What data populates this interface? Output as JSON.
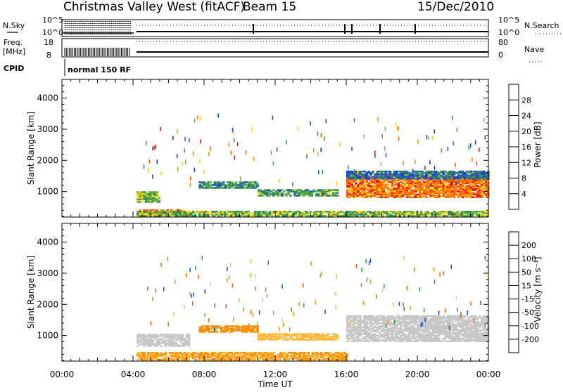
{
  "header": {
    "station": "Christmas Valley West (fitACF)",
    "beam": "Beam 15",
    "date": "15/Dec/2010"
  },
  "status_panels": {
    "nsky_label": "N.Sky",
    "nsky_scale": [
      "10^5",
      "10^0"
    ],
    "nsearch_label": "N.Search",
    "nsearch_scale": [
      "10^5",
      "10^0"
    ],
    "freq_label": "Freq.",
    "freq_unit": "[MHz]",
    "freq_scale": [
      "18",
      "8"
    ],
    "nave_label": "Nave",
    "nave_scale": [
      "80",
      "0"
    ],
    "cpid_label": "CPID",
    "cpid_value": "normal 150 RF"
  },
  "colors": {
    "power": [
      "#0033ff",
      "#1f4fd0",
      "#2f8a55",
      "#5fb247",
      "#ffd400",
      "#ff8c00",
      "#ff5a00",
      "#ff0000"
    ],
    "velocity": [
      "#ff0000",
      "#ff6000",
      "#ff9000",
      "#ffbb40",
      "#c8c8c8",
      "#6ccb2a",
      "#2f9f3a",
      "#1f4fbf",
      "#0033cc"
    ],
    "ground_scatter": "#c8c8c8"
  },
  "chart_data": [
    {
      "type": "heatmap",
      "title": "Power",
      "colorbar_label": "Power [dB]",
      "colorbar_ticks": [
        "4",
        "8",
        "12",
        "16",
        "20",
        "24",
        "28"
      ],
      "xlabel": "",
      "ylabel": "Slant Range [km]",
      "yticks": [
        "1000",
        "2000",
        "3000",
        "4000"
      ],
      "ylim": [
        180,
        4600
      ],
      "xlim_hours": [
        0,
        24
      ],
      "grid": false,
      "regions": [
        {
          "t": [
            4.2,
            5.5
          ],
          "r": [
            650,
            1000
          ],
          "value_db": 14
        },
        {
          "t": [
            4.2,
            7.2
          ],
          "r": [
            200,
            420
          ],
          "value_db": 24
        },
        {
          "t": [
            7.7,
            11.0
          ],
          "r": [
            1100,
            1300
          ],
          "value_db": 10
        },
        {
          "t": [
            11.0,
            15.5
          ],
          "r": [
            850,
            1050
          ],
          "value_db": 12
        },
        {
          "t": [
            16.0,
            24.0
          ],
          "r": [
            800,
            1500
          ],
          "value_db": 24
        },
        {
          "t": [
            16.0,
            24.0
          ],
          "r": [
            1400,
            1650
          ],
          "value_db": 8
        },
        {
          "t": [
            4.2,
            24.0
          ],
          "r": [
            200,
            350
          ],
          "value_db": 14
        }
      ]
    },
    {
      "type": "heatmap",
      "title": "Velocity",
      "colorbar_label": "Velocity [m s⁻¹]",
      "colorbar_ticks": [
        "-200",
        "-100",
        "-50",
        "-15",
        "15",
        "50",
        "100",
        "200"
      ],
      "xlabel": "Time UT",
      "ylabel": "Slant Range [km]",
      "xticks": [
        "00:00",
        "04:00",
        "08:00",
        "12:00",
        "16:00",
        "20:00",
        "00:00"
      ],
      "yticks": [
        "1000",
        "2000",
        "3000",
        "4000"
      ],
      "ylim": [
        180,
        4600
      ],
      "xlim_hours": [
        0,
        24
      ],
      "grid": false,
      "regions": [
        {
          "t": [
            4.2,
            7.2
          ],
          "r": [
            650,
            1050
          ],
          "value_ms": 0
        },
        {
          "t": [
            7.7,
            11.0
          ],
          "r": [
            1100,
            1300
          ],
          "value_ms": -60
        },
        {
          "t": [
            11.0,
            15.5
          ],
          "r": [
            850,
            1050
          ],
          "value_ms": -40
        },
        {
          "t": [
            16.0,
            24.0
          ],
          "r": [
            800,
            1650
          ],
          "value_ms": 0
        },
        {
          "t": [
            4.2,
            16.0
          ],
          "r": [
            200,
            450
          ],
          "value_ms": -50
        }
      ]
    }
  ]
}
